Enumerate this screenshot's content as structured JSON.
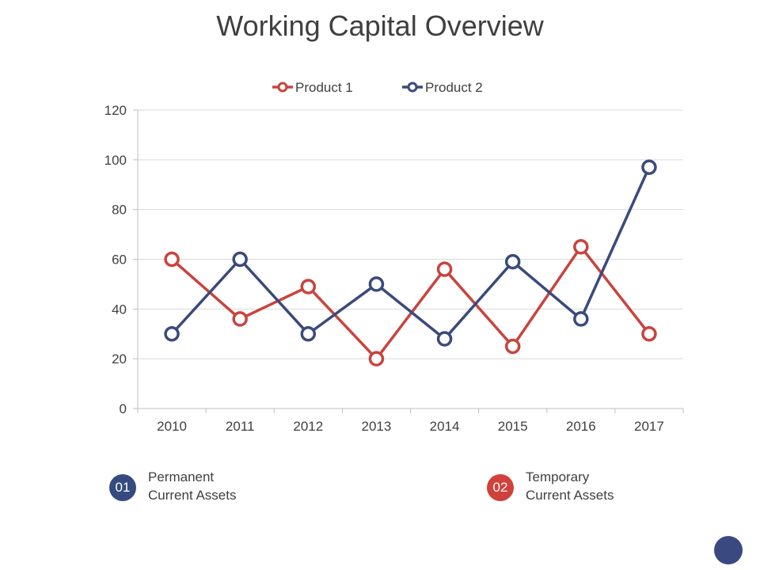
{
  "slide": {
    "title": "Working Capital Overview",
    "notes": [
      {
        "badge": "01",
        "line1": "Permanent",
        "line2": "Current Assets",
        "color": "#354a7f"
      },
      {
        "badge": "02",
        "line1": "Temporary",
        "line2": "Current Assets",
        "color": "#d0413c"
      }
    ]
  },
  "chart_data": {
    "type": "line",
    "categories": [
      "2010",
      "2011",
      "2012",
      "2013",
      "2014",
      "2015",
      "2016",
      "2017"
    ],
    "series": [
      {
        "name": "Product 1",
        "color": "#c9433d",
        "values": [
          60,
          36,
          49,
          20,
          56,
          25,
          65,
          30
        ]
      },
      {
        "name": "Product 2",
        "color": "#3a4a7c",
        "values": [
          30,
          60,
          30,
          50,
          28,
          59,
          36,
          97
        ]
      }
    ],
    "ylim": [
      0,
      120
    ],
    "yticks": [
      "0",
      "20",
      "40",
      "60",
      "80",
      "100",
      "120"
    ],
    "grid": true,
    "legend": "top-center"
  }
}
